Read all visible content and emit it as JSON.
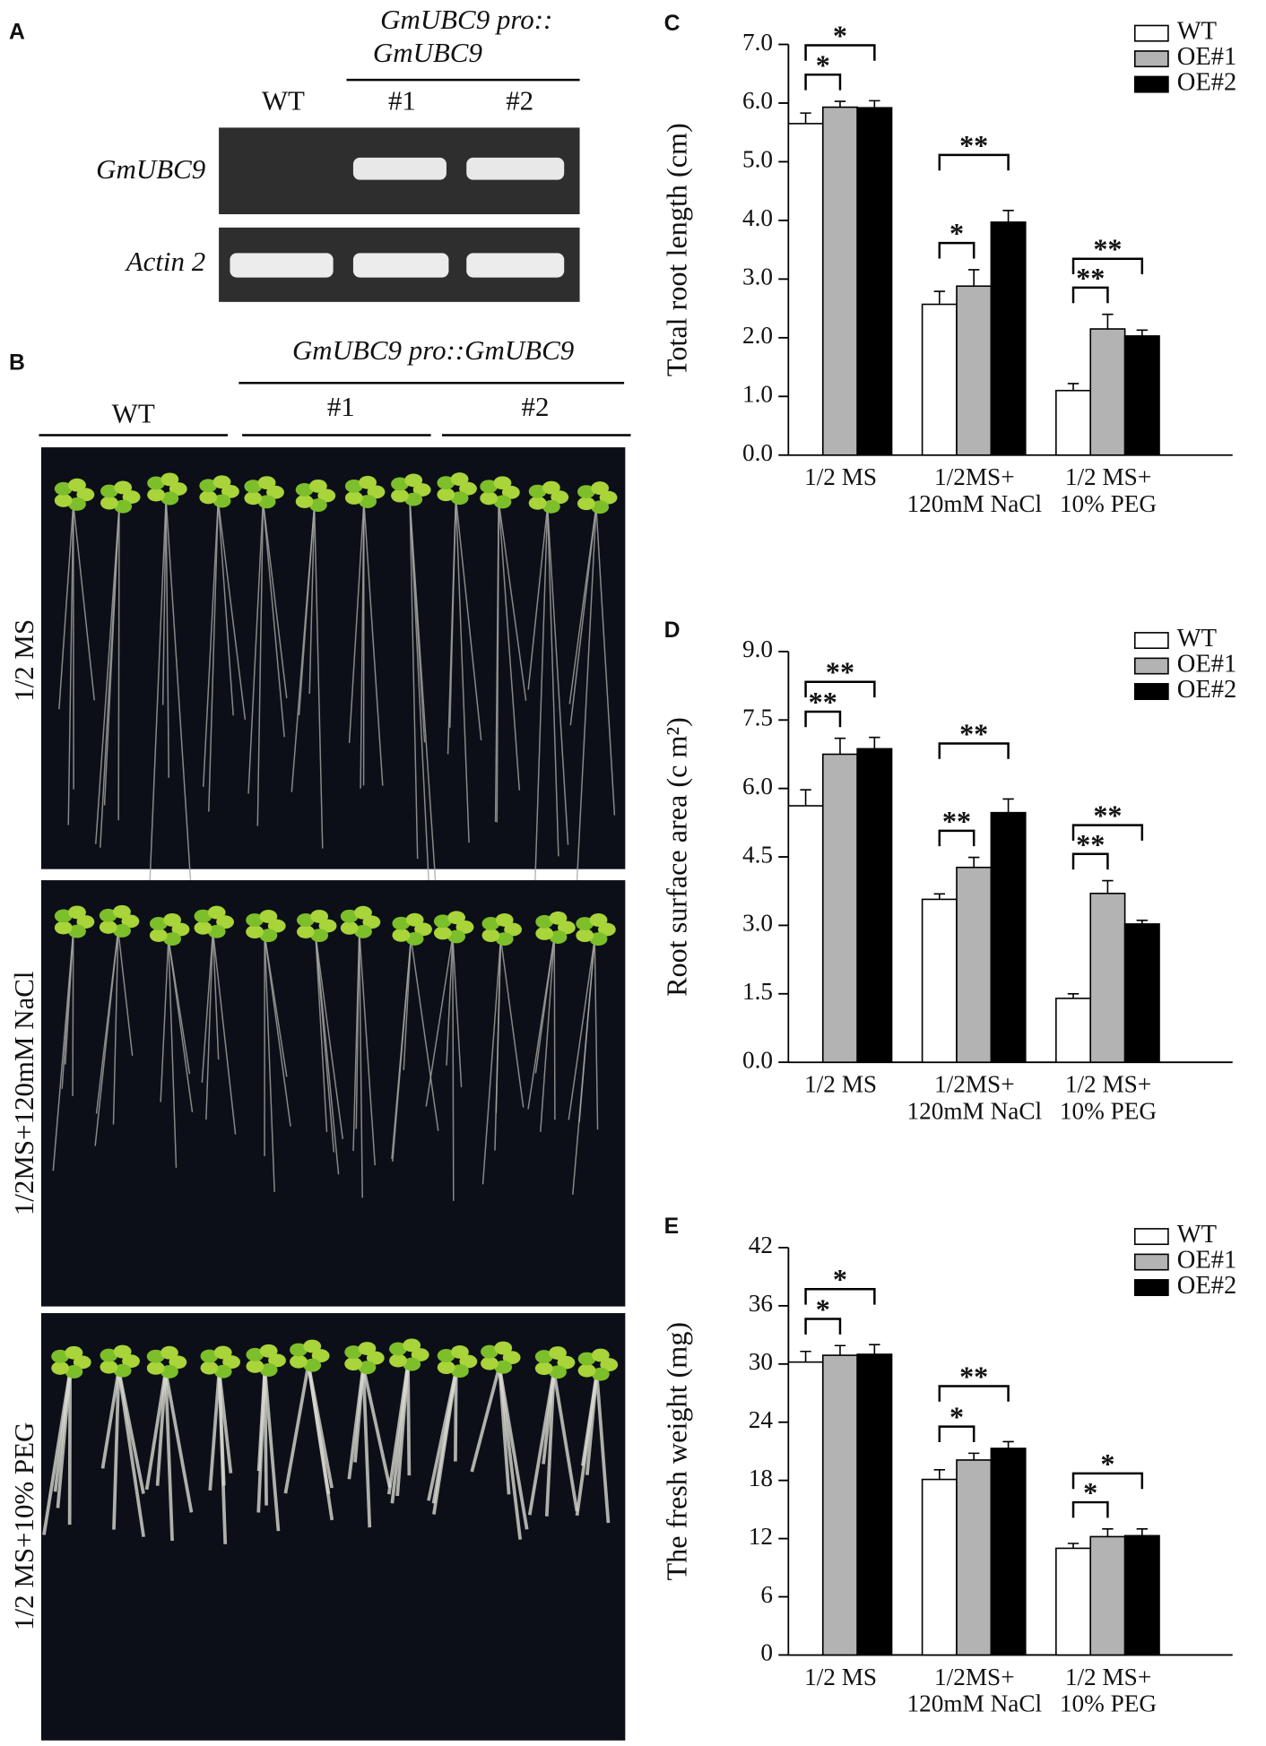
{
  "panel_a": {
    "letter": "A",
    "construct": [
      "GmUBC9 pro::",
      "GmUBC9"
    ],
    "lanes": [
      "WT",
      "#1",
      "#2"
    ],
    "genes": [
      "GmUBC9",
      "Actin 2"
    ]
  },
  "panel_b": {
    "letter": "B",
    "construct": "GmUBC9 pro::GmUBC9",
    "lines": [
      "WT",
      "#1",
      "#2"
    ],
    "conditions": [
      "1/2 MS",
      "1/2MS+120mM NaCl",
      "1/2 MS+10% PEG"
    ]
  },
  "chart_data": [
    {
      "type": "bar",
      "panel": "C",
      "ylabel": "Total root length (cm)",
      "categories": [
        [
          "1/2 MS"
        ],
        [
          "1/2MS+",
          "120mM NaCl"
        ],
        [
          "1/2 MS+",
          "10% PEG"
        ]
      ],
      "series": [
        {
          "name": "WT",
          "color": "#ffffff",
          "values": [
            5.65,
            2.57,
            1.1
          ],
          "errors": [
            0.18,
            0.22,
            0.12
          ]
        },
        {
          "name": "OE#1",
          "color": "#b3b3b3",
          "values": [
            5.93,
            2.88,
            2.15
          ],
          "errors": [
            0.1,
            0.28,
            0.25
          ]
        },
        {
          "name": "OE#2",
          "color": "#000000",
          "values": [
            5.92,
            3.97,
            2.03
          ],
          "errors": [
            0.12,
            0.2,
            0.1
          ]
        }
      ],
      "significance": [
        [
          "*",
          "*"
        ],
        [
          "*",
          "**"
        ],
        [
          "**",
          "**"
        ]
      ],
      "ylim": [
        0,
        7
      ],
      "yticks": [
        {
          "value": 0,
          "label": "0.0"
        },
        {
          "value": 1,
          "label": "1.0"
        },
        {
          "value": 2,
          "label": "2.0"
        },
        {
          "value": 3,
          "label": "3.0"
        },
        {
          "value": 4,
          "label": "4.0"
        },
        {
          "value": 5,
          "label": "5.0"
        },
        {
          "value": 6,
          "label": "6.0"
        },
        {
          "value": 7,
          "label": "7.0"
        }
      ],
      "legend": "upper right"
    },
    {
      "type": "bar",
      "panel": "D",
      "ylabel": "Root surface area (c m²)",
      "categories": [
        [
          "1/2 MS"
        ],
        [
          "1/2MS+",
          "120mM NaCl"
        ],
        [
          "1/2 MS+",
          "10% PEG"
        ]
      ],
      "series": [
        {
          "name": "WT",
          "color": "#ffffff",
          "values": [
            5.62,
            3.57,
            1.4
          ],
          "errors": [
            0.35,
            0.12,
            0.1
          ]
        },
        {
          "name": "OE#1",
          "color": "#b3b3b3",
          "values": [
            6.75,
            4.27,
            3.7
          ],
          "errors": [
            0.35,
            0.22,
            0.28
          ]
        },
        {
          "name": "OE#2",
          "color": "#000000",
          "values": [
            6.87,
            5.47,
            3.03
          ],
          "errors": [
            0.25,
            0.3,
            0.08
          ]
        }
      ],
      "significance": [
        [
          "**",
          "**"
        ],
        [
          "**",
          "**"
        ],
        [
          "**",
          "**"
        ]
      ],
      "ylim": [
        0,
        9
      ],
      "yticks": [
        {
          "value": 0,
          "label": "0.0"
        },
        {
          "value": 1.5,
          "label": "1.5"
        },
        {
          "value": 3,
          "label": "3.0"
        },
        {
          "value": 4.5,
          "label": "4.5"
        },
        {
          "value": 6,
          "label": "6.0"
        },
        {
          "value": 7.5,
          "label": "7.5"
        },
        {
          "value": 9,
          "label": "9.0"
        }
      ],
      "legend": "upper right"
    },
    {
      "type": "bar",
      "panel": "E",
      "ylabel": "The fresh weight (mg)",
      "categories": [
        [
          "1/2 MS"
        ],
        [
          "1/2MS+",
          "120mM NaCl"
        ],
        [
          "1/2 MS+",
          "10% PEG"
        ]
      ],
      "series": [
        {
          "name": "WT",
          "color": "#ffffff",
          "values": [
            30.2,
            18.1,
            11.0
          ],
          "errors": [
            1.1,
            1.0,
            0.5
          ]
        },
        {
          "name": "OE#1",
          "color": "#b3b3b3",
          "values": [
            30.9,
            20.1,
            12.2
          ],
          "errors": [
            1.0,
            0.7,
            0.8
          ]
        },
        {
          "name": "OE#2",
          "color": "#000000",
          "values": [
            31.0,
            21.3,
            12.3
          ],
          "errors": [
            1.0,
            0.7,
            0.7
          ]
        }
      ],
      "significance": [
        [
          "*",
          "*"
        ],
        [
          "*",
          "**"
        ],
        [
          "*",
          "*"
        ]
      ],
      "ylim": [
        0,
        42
      ],
      "yticks": [
        0,
        6,
        12,
        18,
        24,
        30,
        36,
        42
      ],
      "legend": "upper right"
    }
  ]
}
